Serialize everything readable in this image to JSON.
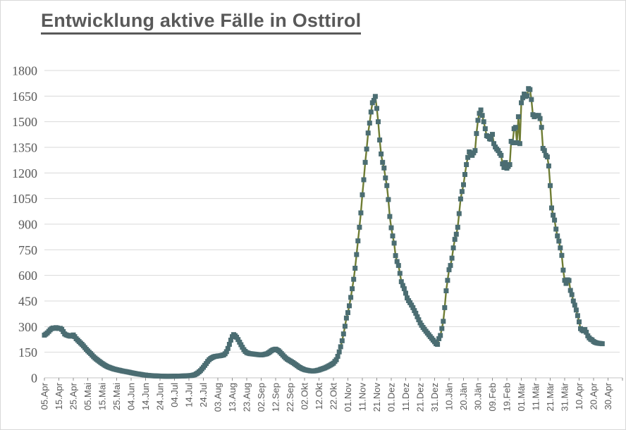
{
  "title": "Entwicklung aktive Fälle in Osttirol",
  "colors": {
    "title_text": "#595959",
    "axis_text": "#595959",
    "gridline": "#d9d9d9",
    "axis_line": "#c6c6c6",
    "tick_mark": "#8f8f8f",
    "series_line": "#6f7d34",
    "series_marker": "#4b6d72",
    "background": "#ffffff"
  },
  "chart_data": {
    "type": "line",
    "title": "Entwicklung aktive Fälle in Osttirol",
    "xlabel": "",
    "ylabel": "",
    "legend": "none",
    "grid": "horizontal",
    "marker_shape": "square",
    "ylim": [
      0,
      1800
    ],
    "y_ticks": [
      0,
      150,
      300,
      450,
      600,
      750,
      900,
      1050,
      1200,
      1350,
      1500,
      1650,
      1800
    ],
    "x_tick_labels": [
      "05.Apr",
      "15.Apr",
      "25.Apr",
      "05.Mai",
      "15.Mai",
      "25.Mai",
      "04.Jun",
      "14.Jun",
      "24.Jun",
      "04.Jul",
      "14.Jul",
      "24.Jul",
      "03.Aug",
      "13.Aug",
      "23.Aug",
      "02.Sep",
      "12.Sep",
      "22.Sep",
      "02.Okt",
      "12.Okt",
      "22.Okt",
      "01.Nov",
      "11.Nov",
      "21.Nov",
      "01.Dez",
      "11.Dez",
      "21.Dez",
      "31.Dez",
      "10.Jän",
      "20.Jän",
      "30.Jän",
      "09.Feb",
      "19.Feb",
      "01.Mär",
      "11.Mär",
      "21.Mär",
      "31.Mär",
      "10.Apr",
      "20.Apr",
      "30.Apr"
    ],
    "x_days_per_tick": 10,
    "series": [
      {
        "name": "aktive Fälle",
        "note": "points are [days since 05.Apr, active cases]; daily markers are interpolated between points",
        "points": [
          [
            0,
            250
          ],
          [
            1,
            256
          ],
          [
            2,
            263
          ],
          [
            3,
            272
          ],
          [
            4,
            281
          ],
          [
            5,
            288
          ],
          [
            6,
            292
          ],
          [
            7,
            290
          ],
          [
            8,
            294
          ],
          [
            9,
            292
          ],
          [
            10,
            289
          ],
          [
            11,
            290
          ],
          [
            12,
            284
          ],
          [
            13,
            271
          ],
          [
            14,
            257
          ],
          [
            15,
            252
          ],
          [
            16,
            249
          ],
          [
            17,
            246
          ],
          [
            18,
            244
          ],
          [
            19,
            248
          ],
          [
            20,
            251
          ],
          [
            21,
            241
          ],
          [
            22,
            229
          ],
          [
            23,
            221
          ],
          [
            24,
            212
          ],
          [
            25,
            204
          ],
          [
            26,
            196
          ],
          [
            27,
            187
          ],
          [
            28,
            177
          ],
          [
            29,
            167
          ],
          [
            30,
            158
          ],
          [
            31,
            150
          ],
          [
            32,
            142
          ],
          [
            33,
            133
          ],
          [
            34,
            124
          ],
          [
            35,
            116
          ],
          [
            36,
            109
          ],
          [
            37,
            103
          ],
          [
            38,
            96
          ],
          [
            39,
            90
          ],
          [
            40,
            84
          ],
          [
            42,
            73
          ],
          [
            44,
            64
          ],
          [
            46,
            58
          ],
          [
            48,
            52
          ],
          [
            50,
            48
          ],
          [
            52,
            44
          ],
          [
            54,
            40
          ],
          [
            56,
            37
          ],
          [
            58,
            34
          ],
          [
            60,
            30
          ],
          [
            63,
            25
          ],
          [
            66,
            21
          ],
          [
            69,
            17
          ],
          [
            72,
            14
          ],
          [
            75,
            12
          ],
          [
            78,
            11
          ],
          [
            81,
            10
          ],
          [
            84,
            9
          ],
          [
            87,
            9
          ],
          [
            90,
            10
          ],
          [
            93,
            10
          ],
          [
            96,
            11
          ],
          [
            99,
            12
          ],
          [
            102,
            14
          ],
          [
            104,
            18
          ],
          [
            106,
            28
          ],
          [
            108,
            42
          ],
          [
            110,
            62
          ],
          [
            112,
            84
          ],
          [
            113,
            96
          ],
          [
            114,
            106
          ],
          [
            115,
            113
          ],
          [
            116,
            118
          ],
          [
            117,
            122
          ],
          [
            118,
            125
          ],
          [
            120,
            128
          ],
          [
            122,
            130
          ],
          [
            124,
            134
          ],
          [
            125,
            141
          ],
          [
            126,
            153
          ],
          [
            127,
            172
          ],
          [
            128,
            196
          ],
          [
            129,
            221
          ],
          [
            130,
            241
          ],
          [
            131,
            253
          ],
          [
            132,
            247
          ],
          [
            133,
            238
          ],
          [
            134,
            224
          ],
          [
            135,
            209
          ],
          [
            136,
            194
          ],
          [
            137,
            179
          ],
          [
            138,
            165
          ],
          [
            139,
            155
          ],
          [
            140,
            148
          ],
          [
            142,
            142
          ],
          [
            144,
            140
          ],
          [
            146,
            138
          ],
          [
            148,
            136
          ],
          [
            150,
            134
          ],
          [
            152,
            137
          ],
          [
            154,
            141
          ],
          [
            155,
            146
          ],
          [
            156,
            152
          ],
          [
            157,
            158
          ],
          [
            158,
            163
          ],
          [
            159,
            166
          ],
          [
            160,
            168
          ],
          [
            161,
            164
          ],
          [
            162,
            159
          ],
          [
            163,
            151
          ],
          [
            164,
            142
          ],
          [
            165,
            133
          ],
          [
            166,
            124
          ],
          [
            167,
            116
          ],
          [
            168,
            109
          ],
          [
            170,
            99
          ],
          [
            172,
            89
          ],
          [
            174,
            77
          ],
          [
            176,
            65
          ],
          [
            178,
            55
          ],
          [
            180,
            48
          ],
          [
            182,
            44
          ],
          [
            184,
            41
          ],
          [
            186,
            40
          ],
          [
            188,
            42
          ],
          [
            190,
            46
          ],
          [
            192,
            52
          ],
          [
            194,
            58
          ],
          [
            196,
            66
          ],
          [
            198,
            75
          ],
          [
            200,
            86
          ],
          [
            202,
            106
          ],
          [
            203,
            126
          ],
          [
            204,
            152
          ],
          [
            205,
            182
          ],
          [
            206,
            217
          ],
          [
            207,
            257
          ],
          [
            208,
            302
          ],
          [
            209,
            350
          ],
          [
            210,
            382
          ],
          [
            211,
            422
          ],
          [
            212,
            471
          ],
          [
            213,
            522
          ],
          [
            214,
            577
          ],
          [
            215,
            642
          ],
          [
            216,
            722
          ],
          [
            217,
            802
          ],
          [
            218,
            882
          ],
          [
            219,
            966
          ],
          [
            220,
            1072
          ],
          [
            221,
            1160
          ],
          [
            222,
            1262
          ],
          [
            223,
            1340
          ],
          [
            224,
            1434
          ],
          [
            225,
            1492
          ],
          [
            226,
            1557
          ],
          [
            227,
            1611
          ],
          [
            228,
            1625
          ],
          [
            229,
            1648
          ],
          [
            230,
            1578
          ],
          [
            231,
            1500
          ],
          [
            232,
            1393
          ],
          [
            233,
            1311
          ],
          [
            234,
            1262
          ],
          [
            235,
            1229
          ],
          [
            236,
            1171
          ],
          [
            237,
            1126
          ],
          [
            238,
            1044
          ],
          [
            239,
            945
          ],
          [
            240,
            879
          ],
          [
            241,
            831
          ],
          [
            242,
            789
          ],
          [
            243,
            716
          ],
          [
            244,
            681
          ],
          [
            245,
            658
          ],
          [
            246,
            612
          ],
          [
            247,
            563
          ],
          [
            248,
            541
          ],
          [
            249,
            522
          ],
          [
            250,
            496
          ],
          [
            251,
            468
          ],
          [
            252,
            452
          ],
          [
            253,
            440
          ],
          [
            254,
            426
          ],
          [
            255,
            411
          ],
          [
            256,
            394
          ],
          [
            257,
            378
          ],
          [
            258,
            358
          ],
          [
            259,
            340
          ],
          [
            260,
            322
          ],
          [
            261,
            308
          ],
          [
            262,
            295
          ],
          [
            263,
            284
          ],
          [
            264,
            273
          ],
          [
            265,
            262
          ],
          [
            266,
            252
          ],
          [
            267,
            241
          ],
          [
            268,
            231
          ],
          [
            269,
            221
          ],
          [
            270,
            211
          ],
          [
            271,
            200
          ],
          [
            272,
            196
          ],
          [
            273,
            229
          ],
          [
            274,
            248
          ],
          [
            275,
            289
          ],
          [
            276,
            331
          ],
          [
            277,
            411
          ],
          [
            278,
            510
          ],
          [
            279,
            571
          ],
          [
            280,
            633
          ],
          [
            281,
            658
          ],
          [
            282,
            701
          ],
          [
            283,
            761
          ],
          [
            284,
            811
          ],
          [
            285,
            841
          ],
          [
            286,
            882
          ],
          [
            287,
            962
          ],
          [
            288,
            1048
          ],
          [
            289,
            1091
          ],
          [
            290,
            1131
          ],
          [
            291,
            1191
          ],
          [
            292,
            1249
          ],
          [
            293,
            1291
          ],
          [
            294,
            1323
          ],
          [
            295,
            1311
          ],
          [
            296,
            1303
          ],
          [
            297,
            1318
          ],
          [
            298,
            1331
          ],
          [
            299,
            1431
          ],
          [
            300,
            1508
          ],
          [
            301,
            1549
          ],
          [
            302,
            1569
          ],
          [
            303,
            1537
          ],
          [
            304,
            1500
          ],
          [
            305,
            1459
          ],
          [
            306,
            1418
          ],
          [
            307,
            1414
          ],
          [
            308,
            1400
          ],
          [
            309,
            1397
          ],
          [
            310,
            1426
          ],
          [
            311,
            1372
          ],
          [
            312,
            1352
          ],
          [
            313,
            1340
          ],
          [
            314,
            1331
          ],
          [
            315,
            1315
          ],
          [
            316,
            1303
          ],
          [
            317,
            1253
          ],
          [
            318,
            1232
          ],
          [
            319,
            1261
          ],
          [
            320,
            1228
          ],
          [
            321,
            1238
          ],
          [
            322,
            1249
          ],
          [
            323,
            1385
          ],
          [
            324,
            1377
          ],
          [
            325,
            1459
          ],
          [
            326,
            1467
          ],
          [
            327,
            1377
          ],
          [
            328,
            1529
          ],
          [
            329,
            1372
          ],
          [
            330,
            1611
          ],
          [
            331,
            1640
          ],
          [
            332,
            1662
          ],
          [
            333,
            1648
          ],
          [
            334,
            1652
          ],
          [
            335,
            1694
          ],
          [
            336,
            1688
          ],
          [
            337,
            1630
          ],
          [
            338,
            1541
          ],
          [
            339,
            1529
          ],
          [
            340,
            1537
          ],
          [
            341,
            1534
          ],
          [
            342,
            1537
          ],
          [
            343,
            1519
          ],
          [
            344,
            1467
          ],
          [
            345,
            1344
          ],
          [
            346,
            1331
          ],
          [
            347,
            1303
          ],
          [
            348,
            1294
          ],
          [
            349,
            1241
          ],
          [
            350,
            1126
          ],
          [
            351,
            995
          ],
          [
            352,
            953
          ],
          [
            353,
            924
          ],
          [
            354,
            871
          ],
          [
            355,
            831
          ],
          [
            356,
            801
          ],
          [
            357,
            761
          ],
          [
            358,
            717
          ],
          [
            359,
            631
          ],
          [
            360,
            571
          ],
          [
            361,
            553
          ],
          [
            362,
            574
          ],
          [
            363,
            570
          ],
          [
            364,
            512
          ],
          [
            365,
            487
          ],
          [
            366,
            450
          ],
          [
            367,
            426
          ],
          [
            368,
            397
          ],
          [
            369,
            364
          ],
          [
            370,
            328
          ],
          [
            371,
            288
          ],
          [
            372,
            280
          ],
          [
            373,
            275
          ],
          [
            374,
            283
          ],
          [
            375,
            267
          ],
          [
            376,
            246
          ],
          [
            377,
            234
          ],
          [
            378,
            226
          ],
          [
            379,
            222
          ],
          [
            380,
            213
          ],
          [
            381,
            208
          ],
          [
            382,
            205
          ],
          [
            383,
            203
          ],
          [
            384,
            202
          ],
          [
            385,
            201
          ],
          [
            386,
            200
          ]
        ]
      }
    ]
  }
}
